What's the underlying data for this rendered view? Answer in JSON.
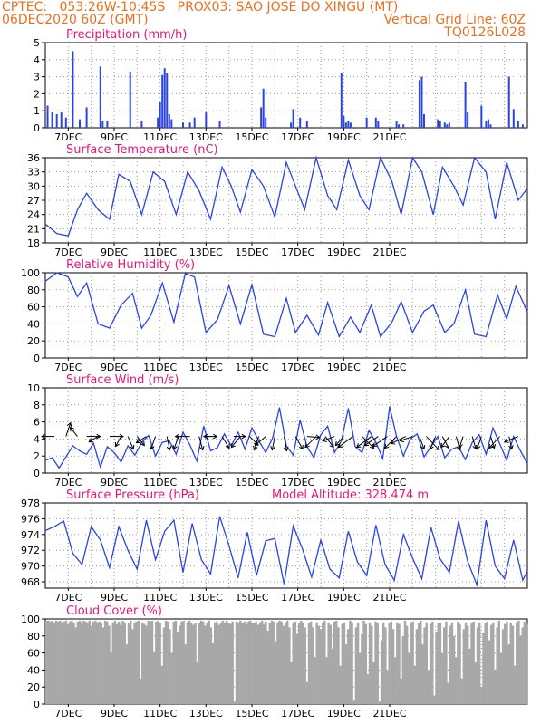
{
  "header": {
    "line1": "CPTEC:   053:26W-10:45S   PROX03: SAO JOSE DO XINGU (MT)",
    "line2": "06DEC2020 60Z (GMT)",
    "right1": "Vertical Grid Line: 60Z",
    "right2": "TQ0126L028"
  },
  "colors": {
    "header": "#e8701e",
    "title": "#e0187a",
    "line": "#2a44e0",
    "cloud": "#a8a8a8",
    "grid": "#9a9a9a"
  },
  "chart_data": [
    {
      "type": "bar",
      "title": "Precipitation  (mm/h)",
      "ylim": [
        0,
        5
      ],
      "yticks": [
        "0",
        "1",
        "2",
        "3",
        "4",
        "5"
      ],
      "xticks": [
        "7DEC",
        "9DEC",
        "11DEC",
        "13DEC",
        "15DEC",
        "17DEC",
        "19DEC",
        "21DEC"
      ],
      "x": [
        0.1,
        0.3,
        0.5,
        0.7,
        0.9,
        1.2,
        1.5,
        1.8,
        2.4,
        2.5,
        2.7,
        3.7,
        4.2,
        4.9,
        5.0,
        5.1,
        5.2,
        5.3,
        5.4,
        5.5,
        6.0,
        6.3,
        6.5,
        7.0,
        7.6,
        9.4,
        9.5,
        9.6,
        10.7,
        10.8,
        11.1,
        11.4,
        12.9,
        13.0,
        13.1,
        13.2,
        13.3,
        14.0,
        14.4,
        14.5,
        15.3,
        15.4,
        15.6,
        16.3,
        16.4,
        16.5,
        17.1,
        17.2,
        17.4,
        17.5,
        17.6,
        18.3,
        18.4,
        19.0,
        19.2,
        19.3,
        19.4,
        20.2,
        20.4,
        20.6,
        20.8
      ],
      "values": [
        1.3,
        0.9,
        0.8,
        0.9,
        0.6,
        4.5,
        0.5,
        1.2,
        3.6,
        0.4,
        0.4,
        3.3,
        0.4,
        0.6,
        1.5,
        3.1,
        3.5,
        3.2,
        0.8,
        0.5,
        0.3,
        0.3,
        0.6,
        0.9,
        0.4,
        1.2,
        2.3,
        0.6,
        0.3,
        1.1,
        0.6,
        0.4,
        3.2,
        0.7,
        0.3,
        0.4,
        0.3,
        0.6,
        0.6,
        0.4,
        0.4,
        0.2,
        0.2,
        2.8,
        3.0,
        0.8,
        0.5,
        0.4,
        0.3,
        0.2,
        0.3,
        2.7,
        0.9,
        1.3,
        0.4,
        0.5,
        0.2,
        3.0,
        1.1,
        0.4,
        0.2
      ]
    },
    {
      "type": "line",
      "title": "Surface Temperature (nC)",
      "ylim": [
        18,
        36
      ],
      "yticks": [
        "18",
        "21",
        "24",
        "27",
        "30",
        "33",
        "36"
      ],
      "xticks": [
        "7DEC",
        "9DEC",
        "11DEC",
        "13DEC",
        "15DEC",
        "17DEC",
        "19DEC",
        "21DEC"
      ],
      "x": [
        0,
        0.5,
        1.0,
        1.4,
        1.8,
        2.3,
        2.8,
        3.2,
        3.7,
        4.2,
        4.7,
        5.2,
        5.7,
        6.2,
        6.7,
        7.2,
        7.7,
        8.1,
        8.5,
        9.0,
        9.5,
        10.0,
        10.5,
        10.9,
        11.3,
        11.8,
        12.3,
        12.7,
        13.2,
        13.7,
        14.1,
        14.6,
        15.1,
        15.5,
        16.0,
        16.4,
        16.9,
        17.3,
        17.8,
        18.2,
        18.7,
        19.2,
        19.6,
        20.1,
        20.6,
        21.0
      ],
      "values": [
        22,
        20,
        19.5,
        25,
        28.5,
        25,
        23,
        32.5,
        31,
        24,
        33,
        31,
        24,
        33,
        29,
        23,
        34,
        30,
        24.5,
        33.5,
        30,
        23.5,
        35,
        30,
        25,
        36,
        28,
        25,
        35.5,
        28,
        25,
        36,
        31,
        24,
        36,
        33,
        24,
        34,
        30,
        26,
        36,
        33,
        23,
        35,
        27,
        29.5
      ]
    },
    {
      "type": "line",
      "title": "Relative Humidity (%)",
      "ylim": [
        0,
        100
      ],
      "yticks": [
        "0",
        "20",
        "40",
        "60",
        "80",
        "100"
      ],
      "xticks": [
        "7DEC",
        "9DEC",
        "11DEC",
        "13DEC",
        "15DEC",
        "17DEC",
        "19DEC",
        "21DEC"
      ],
      "x": [
        0,
        0.5,
        1.0,
        1.4,
        1.8,
        2.3,
        2.8,
        3.3,
        3.8,
        4.2,
        4.6,
        5.1,
        5.6,
        6.1,
        6.5,
        7.0,
        7.5,
        8.0,
        8.5,
        9.0,
        9.5,
        10.0,
        10.5,
        10.9,
        11.4,
        11.9,
        12.3,
        12.8,
        13.3,
        13.7,
        14.2,
        14.6,
        15.1,
        15.5,
        16.0,
        16.5,
        16.9,
        17.4,
        17.8,
        18.3,
        18.7,
        19.2,
        19.7,
        20.1,
        20.5,
        21.0
      ],
      "values": [
        90,
        100,
        95,
        72,
        88,
        40,
        35,
        62,
        76,
        35,
        50,
        88,
        42,
        99,
        95,
        30,
        45,
        85,
        40,
        86,
        28,
        25,
        70,
        30,
        50,
        27,
        65,
        25,
        48,
        30,
        62,
        25,
        42,
        66,
        30,
        55,
        62,
        30,
        40,
        80,
        28,
        25,
        74,
        46,
        84,
        54
      ]
    },
    {
      "type": "line",
      "title": "Surface Wind (m/s)",
      "ylim": [
        0,
        10
      ],
      "yticks": [
        "0",
        "2",
        "4",
        "6",
        "8",
        "10"
      ],
      "xticks": [
        "7DEC",
        "9DEC",
        "11DEC",
        "13DEC",
        "15DEC",
        "17DEC",
        "19DEC",
        "21DEC"
      ],
      "x": [
        0,
        0.3,
        0.6,
        0.9,
        1.2,
        1.5,
        1.8,
        2.1,
        2.4,
        2.7,
        3.0,
        3.3,
        3.6,
        3.9,
        4.2,
        4.5,
        4.8,
        5.1,
        5.4,
        5.7,
        6.0,
        6.3,
        6.6,
        6.9,
        7.2,
        7.5,
        7.8,
        8.1,
        8.4,
        8.7,
        9.0,
        9.3,
        9.6,
        9.9,
        10.2,
        10.5,
        10.8,
        11.1,
        11.4,
        11.7,
        12.0,
        12.3,
        12.6,
        12.9,
        13.2,
        13.5,
        13.8,
        14.1,
        14.4,
        14.7,
        15.0,
        15.3,
        15.6,
        15.9,
        16.2,
        16.5,
        16.8,
        17.1,
        17.4,
        17.7,
        18.0,
        18.3,
        18.6,
        18.9,
        19.2,
        19.5,
        19.8,
        20.1,
        20.4,
        20.7,
        21.0
      ],
      "values": [
        1.5,
        1.8,
        0.6,
        1.9,
        3.2,
        2.6,
        2.2,
        3.5,
        0.7,
        3.1,
        2.4,
        1.3,
        3.2,
        2.1,
        3.6,
        4.4,
        2.0,
        3.6,
        3.8,
        2.2,
        4.8,
        3.3,
        1.4,
        5.5,
        2.6,
        3.0,
        4.6,
        3.2,
        4.8,
        2.8,
        5.3,
        3.8,
        2.4,
        4.1,
        7.7,
        3.2,
        2.1,
        6.2,
        3.1,
        1.8,
        4.5,
        5.5,
        2.4,
        3.8,
        7.6,
        3.1,
        2.4,
        5.0,
        3.6,
        1.7,
        7.8,
        4.3,
        2.0,
        4.0,
        4.6,
        1.9,
        3.1,
        4.3,
        1.8,
        2.8,
        3.1,
        1.6,
        3.6,
        4.5,
        2.2,
        5.3,
        3.4,
        1.5,
        4.3,
        2.6,
        1.1
      ],
      "arrows_x": [
        0.4,
        0.9,
        1.4,
        1.8,
        2.3,
        2.8,
        3.3,
        3.6,
        4.0,
        4.4,
        4.8,
        5.3,
        5.8,
        6.3,
        6.7,
        7.0,
        7.3,
        7.7,
        8.2,
        8.5,
        8.9,
        9.3,
        9.6,
        10.0,
        10.4,
        10.9,
        11.4,
        11.8,
        12.2,
        12.6,
        13.0,
        13.4,
        13.8,
        14.2,
        14.5,
        14.9,
        15.3,
        15.7,
        16.0,
        16.3,
        16.6,
        17.0,
        17.3,
        17.6,
        17.9,
        18.2,
        18.6,
        19.0,
        19.4,
        19.8,
        20.2,
        20.6
      ],
      "arrows_u": [
        -1.4,
        0.5,
        -0.8,
        1.5,
        -1.0,
        1.5,
        -0.6,
        0.6,
        0.8,
        -1.1,
        -0.5,
        0.3,
        -0.5,
        -1.6,
        0.4,
        1.2,
        -1.0,
        0.8,
        1.3,
        -1.0,
        0.9,
        -0.5,
        -1.2,
        -0.3,
        0.3,
        0.8,
        1.4,
        -1.2,
        0.9,
        -1.3,
        -0.9,
        -1.6,
        1.3,
        -1.6,
        -1.5,
        -1.6,
        -1.3,
        -1.6,
        -1.4,
        0.5,
        1.4,
        -0.6,
        0.7,
        -0.9,
        0.4,
        -0.4,
        0.4,
        -0.5,
        0.4,
        -1.2,
        0.3,
        -1.5
      ],
      "arrows_v": [
        0,
        -1.5,
        -1.0,
        0,
        0.6,
        0,
        1.1,
        1.4,
        1.0,
        0.7,
        1.4,
        1.5,
        1.4,
        0,
        1.5,
        0,
        0,
        1.3,
        0,
        1.2,
        0.9,
        1.5,
        1.0,
        1.5,
        1.6,
        1.4,
        0.1,
        1.2,
        1.2,
        0.5,
        1.0,
        1.2,
        1.3,
        1.2,
        1.0,
        1.1,
        1.3,
        0.8,
        0.5,
        1.4,
        1.5,
        1.4,
        1.3,
        1.2,
        1.5,
        1.2,
        1.4,
        1.4,
        1.3,
        1.3,
        1.4,
        0.6
      ]
    },
    {
      "type": "line",
      "title": "Surface Pressure (hPa)",
      "annotation": "Model Altitude: 328.474 m",
      "ylim": [
        967.2,
        978
      ],
      "yticks": [
        "968",
        "970",
        "972",
        "974",
        "976",
        "978"
      ],
      "xticks": [
        "7DEC",
        "9DEC",
        "11DEC",
        "13DEC",
        "15DEC",
        "17DEC",
        "19DEC",
        "21DEC"
      ],
      "x": [
        0,
        0.4,
        0.8,
        1.2,
        1.6,
        2.0,
        2.4,
        2.8,
        3.2,
        3.6,
        4.0,
        4.4,
        4.8,
        5.2,
        5.6,
        6.0,
        6.4,
        6.8,
        7.2,
        7.6,
        8.0,
        8.4,
        8.8,
        9.2,
        9.6,
        10.0,
        10.4,
        10.8,
        11.2,
        11.6,
        12.0,
        12.4,
        12.8,
        13.2,
        13.6,
        14.0,
        14.4,
        14.8,
        15.2,
        15.6,
        16.0,
        16.4,
        16.8,
        17.2,
        17.6,
        18.0,
        18.4,
        18.8,
        19.2,
        19.6,
        20.0,
        20.4,
        20.8,
        21.0
      ],
      "values": [
        974.5,
        975.0,
        975.7,
        971.6,
        970.2,
        975.0,
        973.3,
        969.8,
        975.0,
        972.0,
        969.6,
        975.8,
        970.8,
        974.4,
        975.8,
        969.2,
        975.4,
        970.8,
        969.0,
        976.3,
        972.6,
        968.5,
        974.3,
        968.8,
        973.2,
        973.5,
        967.7,
        975.1,
        972.2,
        968.6,
        973.3,
        969.6,
        968.5,
        974.4,
        970.5,
        968.8,
        975.2,
        970.2,
        968.2,
        974.0,
        971.0,
        968.4,
        974.9,
        970.9,
        969.2,
        975.7,
        970.6,
        967.6,
        975.8,
        970.0,
        968.4,
        973.3,
        968.2,
        969.4
      ]
    },
    {
      "type": "bar",
      "title": "Cloud Cover (%)",
      "ylim": [
        0,
        100
      ],
      "yticks": [
        "0",
        "20",
        "40",
        "60",
        "80",
        "100"
      ],
      "xticks": [
        "7DEC",
        "9DEC",
        "11DEC",
        "13DEC",
        "15DEC",
        "17DEC",
        "19DEC",
        "21DEC"
      ],
      "x_start": 0,
      "x_end": 21,
      "values": [
        98,
        98,
        97,
        98,
        96,
        98,
        97,
        98,
        96,
        97,
        98,
        94,
        97,
        98,
        96,
        90,
        97,
        98,
        95,
        98,
        97,
        96,
        98,
        92,
        97,
        98,
        96,
        97,
        95,
        90,
        98,
        97,
        92,
        60,
        96,
        98,
        94,
        97,
        93,
        98,
        96,
        70,
        95,
        98,
        88,
        96,
        97,
        98,
        30,
        96,
        94,
        92,
        98,
        97,
        98,
        62,
        97,
        98,
        96,
        45,
        90,
        98,
        97,
        88,
        60,
        97,
        98,
        85,
        92,
        97,
        98,
        70,
        96,
        98,
        96,
        93,
        95,
        50,
        95,
        98,
        97,
        92,
        96,
        98,
        90,
        72,
        96,
        97,
        93,
        95,
        98,
        96,
        98,
        95,
        94,
        97,
        3,
        97,
        96,
        98,
        95,
        97,
        94,
        97,
        98,
        96,
        95,
        97,
        93,
        96,
        98,
        94,
        97,
        86,
        95,
        98,
        97,
        74,
        96,
        98,
        97,
        92,
        96,
        98,
        90,
        50,
        96,
        97,
        82,
        95,
        98,
        96,
        90,
        26,
        95,
        97,
        90,
        55,
        96,
        92,
        88,
        95,
        98,
        55,
        96,
        93,
        65,
        97,
        98,
        90,
        45,
        94,
        96,
        70,
        88,
        98,
        96,
        5,
        90,
        96,
        60,
        82,
        98,
        94,
        35,
        96,
        92,
        50,
        97,
        95,
        3,
        75,
        96,
        90,
        40,
        95,
        97,
        88,
        55,
        96,
        94,
        30,
        80,
        98,
        92,
        60,
        96,
        97,
        45,
        88,
        95,
        98,
        70,
        90,
        96,
        40,
        94,
        97,
        10,
        85,
        95,
        96,
        60,
        90,
        97,
        25,
        92,
        96,
        80,
        55,
        97,
        94,
        30,
        88,
        96,
        92,
        65,
        95,
        97,
        50,
        90,
        96,
        20,
        84,
        95,
        97,
        75,
        93,
        96,
        40,
        90,
        98,
        60,
        88,
        94,
        97,
        70,
        95,
        92,
        45,
        96,
        98,
        80,
        90,
        97,
        94
      ]
    }
  ]
}
